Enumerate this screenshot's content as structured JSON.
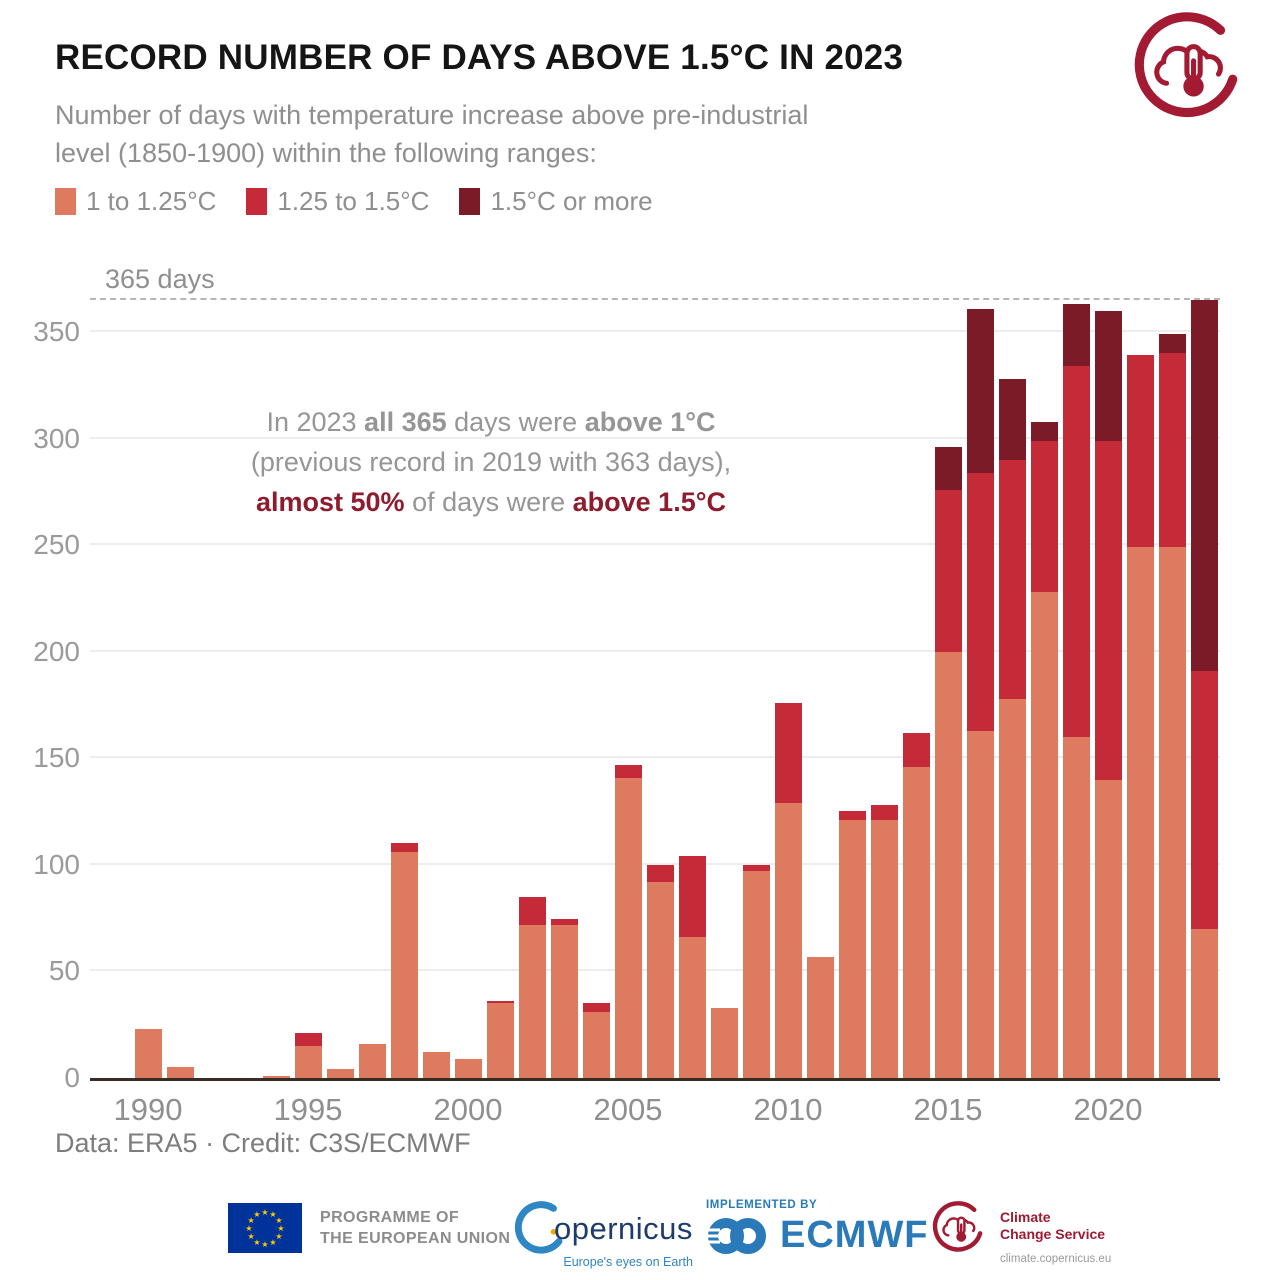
{
  "header": {
    "title": "RECORD NUMBER OF DAYS ABOVE 1.5°C IN 2023",
    "subtitle_line1": "Number of days with temperature increase above pre-industrial",
    "subtitle_line2": "level (1850-1900) within the following ranges:"
  },
  "colors": {
    "band1": "#dd7a5f",
    "band2": "#c42a38",
    "band3": "#7b1b28",
    "annotation_gray": "#969696",
    "annotation_red": "#8e1c2e",
    "logo_carmine": "#a31a33",
    "ecmwf_blue": "#2a7ab9",
    "copernicus_navy": "#1d3c6e",
    "eu_blue": "#003399",
    "eu_star_yellow": "#ffcc00"
  },
  "chart_data": {
    "type": "bar",
    "stacked": true,
    "title": "RECORD NUMBER OF DAYS ABOVE 1.5°C IN 2023",
    "xlabel": "",
    "ylabel": "days",
    "ylim": [
      0,
      365
    ],
    "grid": true,
    "legend_position": "top",
    "x": [
      1989,
      1990,
      1991,
      1992,
      1993,
      1994,
      1995,
      1996,
      1997,
      1998,
      1999,
      2000,
      2001,
      2002,
      2003,
      2004,
      2005,
      2006,
      2007,
      2008,
      2009,
      2010,
      2011,
      2012,
      2013,
      2014,
      2015,
      2016,
      2017,
      2018,
      2019,
      2020,
      2021,
      2022,
      2023
    ],
    "series": [
      {
        "name": "1 to 1.25°C",
        "color": "#dd7a5f",
        "values": [
          0,
          23,
          5,
          0,
          0,
          1,
          15,
          4,
          16,
          106,
          12,
          9,
          35,
          72,
          72,
          31,
          141,
          92,
          66,
          33,
          97,
          129,
          57,
          121,
          121,
          146,
          200,
          163,
          178,
          228,
          160,
          140,
          249,
          249,
          70
        ]
      },
      {
        "name": "1.25 to 1.5°C",
        "color": "#c42a38",
        "values": [
          0,
          0,
          0,
          0,
          0,
          0,
          6,
          0,
          0,
          4,
          0,
          0,
          1,
          13,
          3,
          4,
          6,
          8,
          38,
          0,
          3,
          47,
          0,
          4,
          7,
          16,
          76,
          121,
          112,
          71,
          174,
          159,
          90,
          91,
          121
        ]
      },
      {
        "name": "1.5°C or more",
        "color": "#7b1b28",
        "values": [
          0,
          0,
          0,
          0,
          0,
          0,
          0,
          0,
          0,
          0,
          0,
          0,
          0,
          0,
          0,
          0,
          0,
          0,
          0,
          0,
          0,
          0,
          0,
          0,
          0,
          0,
          20,
          77,
          38,
          9,
          29,
          61,
          0,
          9,
          174
        ]
      }
    ],
    "y_ticks": [
      0,
      50,
      100,
      150,
      200,
      250,
      300,
      350
    ],
    "x_tick_labels": [
      "1990",
      "1995",
      "2000",
      "2005",
      "2010",
      "2015",
      "2020"
    ],
    "ref_line": {
      "value": 365,
      "label": "365 days"
    }
  },
  "annotation": {
    "lines": [
      [
        {
          "t": "In 2023 "
        },
        {
          "t": "all 365",
          "b": true
        },
        {
          "t": " days were "
        },
        {
          "t": "above 1°C",
          "b": true
        }
      ],
      [
        {
          "t": "(previous record in 2019 with 363 days),"
        }
      ],
      [
        {
          "t": "almost 50%",
          "b": true,
          "r": true
        },
        {
          "t": " of days were "
        },
        {
          "t": "above 1.5°C",
          "b": true,
          "r": true
        }
      ]
    ]
  },
  "credit": "Data: ERA5 · Credit: C3S/ECMWF",
  "footer": {
    "eu": {
      "line1": "PROGRAMME OF",
      "line2": "THE EUROPEAN UNION"
    },
    "copernicus": {
      "word": "opernicus",
      "tagline": "Europe's eyes on Earth"
    },
    "ecmwf": {
      "implemented_by": "IMPLEMENTED BY",
      "name": "ECMWF"
    },
    "c3s": {
      "line1": "Climate",
      "line2": "Change Service",
      "url": "climate.copernicus.eu"
    }
  }
}
